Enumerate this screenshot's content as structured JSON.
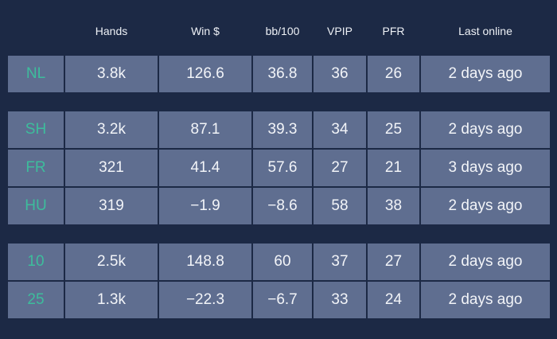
{
  "colors": {
    "background": "#1c2945",
    "row_background": "#5f6e90",
    "label_accent": "#3dbd9c",
    "text": "#f2f4f8"
  },
  "table": {
    "columns": [
      "",
      "Hands",
      "Win $",
      "bb/100",
      "VPIP",
      "PFR",
      "Last online"
    ],
    "groups": [
      {
        "rows": [
          {
            "label": "NL",
            "hands": "3.8k",
            "win": "126.6",
            "bb100": "36.8",
            "vpip": "36",
            "pfr": "26",
            "last_online": "2 days ago"
          }
        ]
      },
      {
        "rows": [
          {
            "label": "SH",
            "hands": "3.2k",
            "win": "87.1",
            "bb100": "39.3",
            "vpip": "34",
            "pfr": "25",
            "last_online": "2 days ago"
          },
          {
            "label": "FR",
            "hands": "321",
            "win": "41.4",
            "bb100": "57.6",
            "vpip": "27",
            "pfr": "21",
            "last_online": "3 days ago"
          },
          {
            "label": "HU",
            "hands": "319",
            "win": "−1.9",
            "bb100": "−8.6",
            "vpip": "58",
            "pfr": "38",
            "last_online": "2 days ago"
          }
        ]
      },
      {
        "rows": [
          {
            "label": "10",
            "hands": "2.5k",
            "win": "148.8",
            "bb100": "60",
            "vpip": "37",
            "pfr": "27",
            "last_online": "2 days ago"
          },
          {
            "label": "25",
            "hands": "1.3k",
            "win": "−22.3",
            "bb100": "−6.7",
            "vpip": "33",
            "pfr": "24",
            "last_online": "2 days ago"
          }
        ]
      }
    ]
  }
}
